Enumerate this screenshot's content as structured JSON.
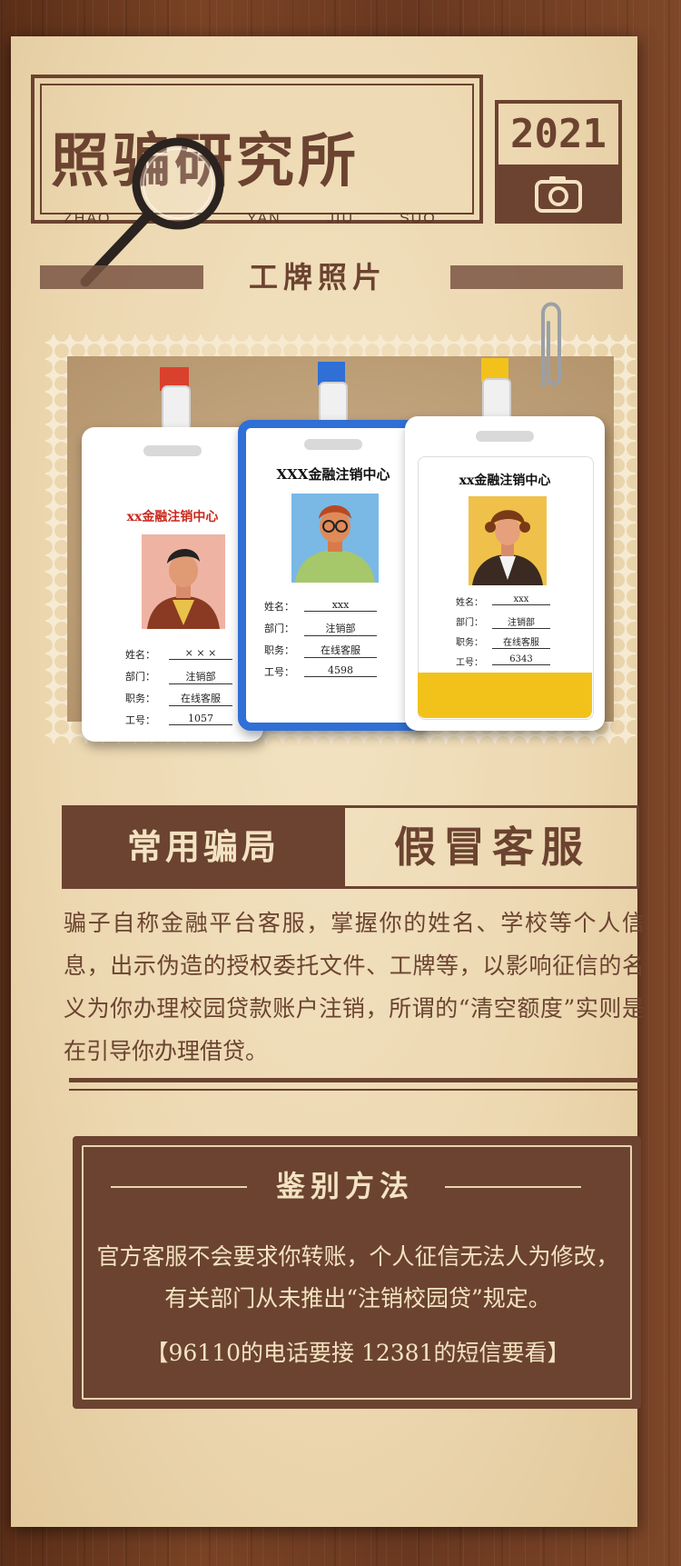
{
  "header": {
    "title": "照骗研究所",
    "pinyin": [
      "ZHAO",
      "YAN",
      "JIU",
      "SUO"
    ],
    "year": "2021",
    "banner": "工牌照片"
  },
  "cards": [
    {
      "org": "xx金融注销中心",
      "strap_color": "#d9412c",
      "fields": [
        {
          "label": "姓名：",
          "value": "× × ×"
        },
        {
          "label": "部门：",
          "value": "注销部"
        },
        {
          "label": "职务：",
          "value": "在线客服"
        },
        {
          "label": "工号：",
          "value": "1057"
        }
      ]
    },
    {
      "org": "XXX金融注销中心",
      "strap_color": "#2f6fd6",
      "fields": [
        {
          "label": "姓名：",
          "value": "xxx"
        },
        {
          "label": "部门：",
          "value": "注销部"
        },
        {
          "label": "职务：",
          "value": "在线客服"
        },
        {
          "label": "工号：",
          "value": "4598"
        }
      ]
    },
    {
      "org": "xx金融注销中心",
      "strap_color": "#f2c21b",
      "fields": [
        {
          "label": "姓名：",
          "value": "xxx"
        },
        {
          "label": "部门：",
          "value": "注销部"
        },
        {
          "label": "职务：",
          "value": "在线客服"
        },
        {
          "label": "工号：",
          "value": "6343"
        }
      ]
    }
  ],
  "section": {
    "left": "常用骗局",
    "right": "假冒客服"
  },
  "description": "骗子自称金融平台客服，掌握你的姓名、学校等个人信息，出示伪造的授权委托文件、工牌等，以影响征信的名义为你办理校园贷款账户注销，所谓的“清空额度”实则是在引导你办理借贷。",
  "method": {
    "title": "鉴别方法",
    "body": "官方客服不会要求你转账，个人征信无法人为修改，有关部门从未推出“注销校园贷”规定。",
    "note": "【96110的电话要接 12381的短信要看】"
  },
  "colors": {
    "brown": "#6b4330",
    "paper": "#f3e3c2",
    "wood": "#6a3820"
  }
}
